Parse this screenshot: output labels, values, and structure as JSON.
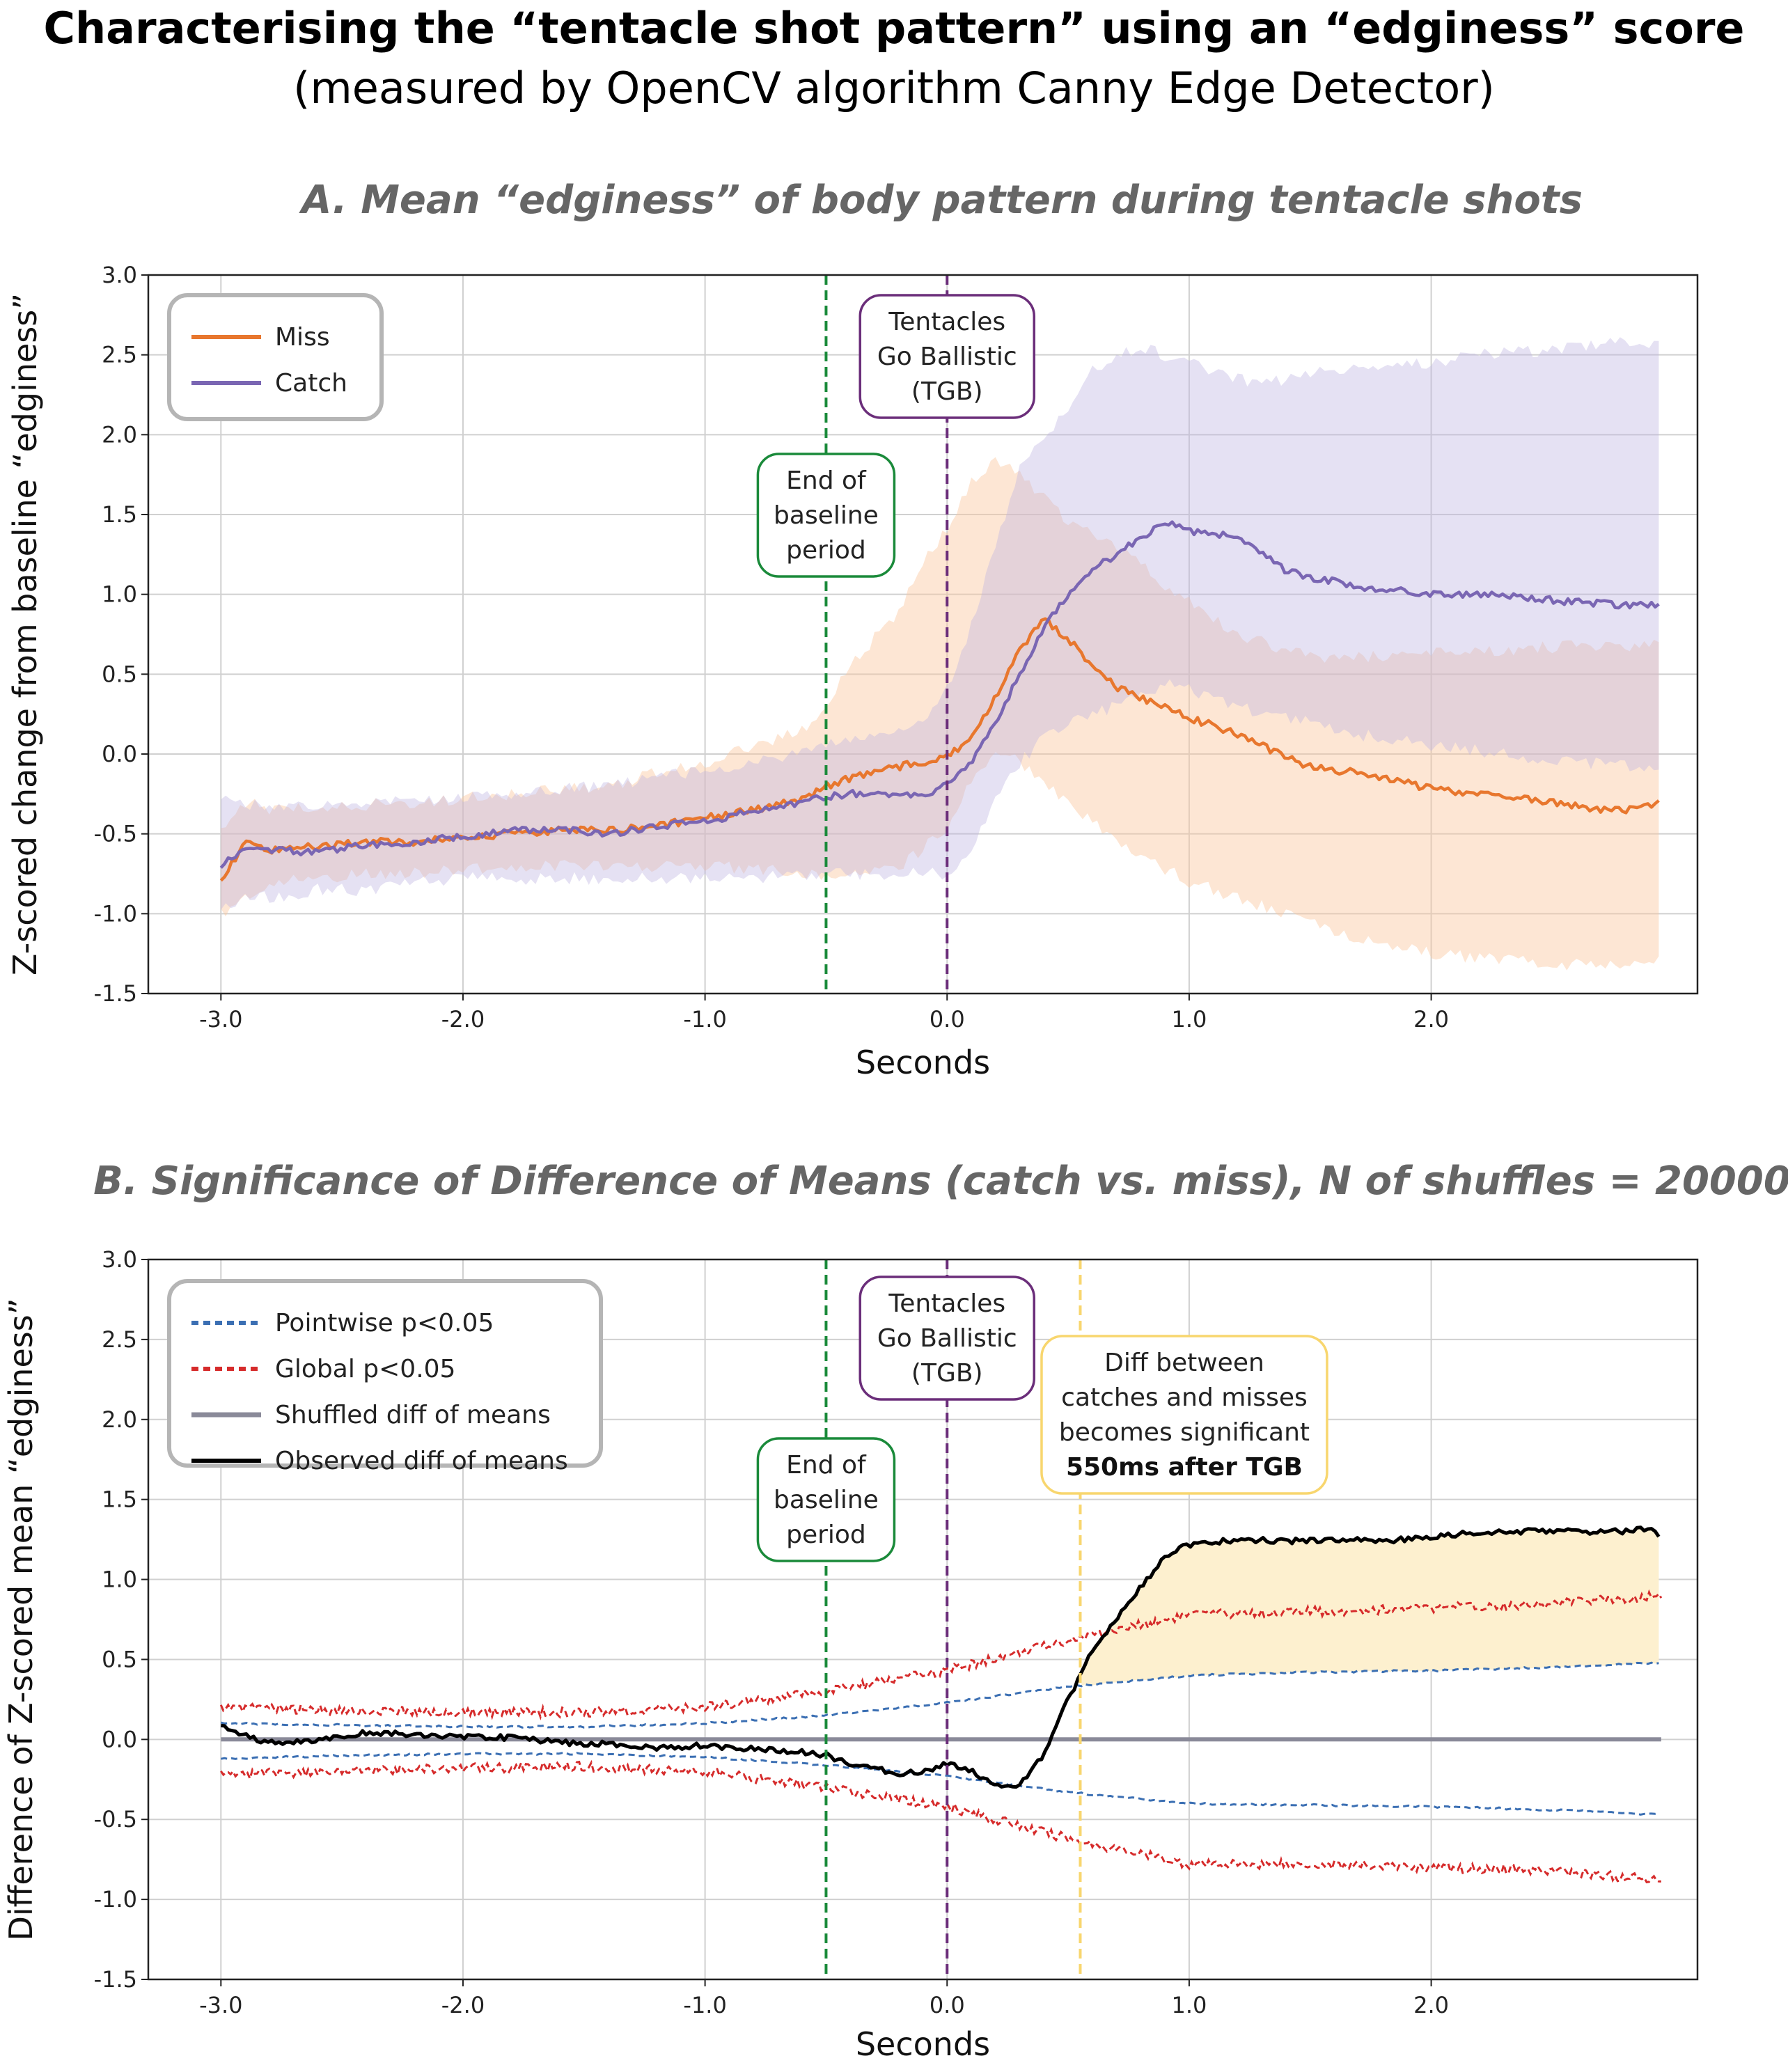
{
  "title": {
    "main": "Characterising the “tentacle shot pattern” using an “edginess” score",
    "sub": "(measured by OpenCV algorithm Canny Edge Detector)"
  },
  "colors": {
    "miss": "#e8772e",
    "catch": "#7a66b3",
    "baseline_line": "#1a8a3a",
    "tgb_line": "#6b2e7a",
    "sig_line": "#f8d66e",
    "pointwise": "#3b6fb3",
    "global": "#d62b2b",
    "shuffled": "#8a8a99",
    "observed": "#000000",
    "sig_fill": "#fdf0cf"
  },
  "chart_data": [
    {
      "type": "line",
      "title": "A. Mean “edginess” of body pattern during tentacle shots",
      "xlabel": "Seconds",
      "ylabel": "Z-scored change from baseline “edginess”",
      "xlim": [
        -3.3,
        3.1
      ],
      "ylim": [
        -1.5,
        3.0
      ],
      "xticks": [
        -3.0,
        -2.0,
        -1.0,
        0.0,
        1.0,
        2.0
      ],
      "xtick_labels": [
        "-3.0",
        "-2.0",
        "-1.0",
        "0.0",
        "1.0",
        "2.0"
      ],
      "yticks": [
        -1.5,
        -1.0,
        -0.5,
        0.0,
        0.5,
        1.0,
        1.5,
        2.0,
        2.5,
        3.0
      ],
      "ytick_labels": [
        "-1.5",
        "-1.0",
        "-0.5",
        "0.0",
        "0.5",
        "1.0",
        "1.5",
        "2.0",
        "2.5",
        "3.0"
      ],
      "grid": true,
      "legend": "top-left",
      "vlines": [
        {
          "x": -0.5,
          "label": "End of baseline period"
        },
        {
          "x": 0.0,
          "label": "Tentacles Go Ballistic (TGB)"
        }
      ],
      "annotations": {
        "baseline": [
          "End of",
          "baseline",
          "period"
        ],
        "tgb": [
          "Tentacles",
          "Go Ballistic",
          "(TGB)"
        ]
      },
      "series": [
        {
          "name": "Miss",
          "x": [
            -3.0,
            -2.9,
            -2.8,
            -2.6,
            -2.4,
            -2.2,
            -2.0,
            -1.8,
            -1.6,
            -1.4,
            -1.2,
            -1.0,
            -0.8,
            -0.6,
            -0.5,
            -0.4,
            -0.2,
            -0.1,
            0.0,
            0.1,
            0.2,
            0.3,
            0.4,
            0.5,
            0.6,
            0.7,
            0.8,
            0.9,
            1.0,
            1.1,
            1.2,
            1.3,
            1.4,
            1.5,
            1.6,
            1.7,
            1.8,
            1.9,
            2.0,
            2.2,
            2.4,
            2.6,
            2.8,
            2.95
          ],
          "values": [
            -0.8,
            -0.55,
            -0.6,
            -0.58,
            -0.55,
            -0.55,
            -0.52,
            -0.5,
            -0.48,
            -0.48,
            -0.45,
            -0.4,
            -0.35,
            -0.28,
            -0.2,
            -0.15,
            -0.08,
            -0.05,
            -0.02,
            0.1,
            0.35,
            0.65,
            0.85,
            0.72,
            0.55,
            0.42,
            0.35,
            0.3,
            0.22,
            0.18,
            0.12,
            0.05,
            -0.02,
            -0.08,
            -0.1,
            -0.12,
            -0.15,
            -0.18,
            -0.22,
            -0.25,
            -0.28,
            -0.33,
            -0.36,
            -0.3
          ],
          "lower": [
            -1.0,
            -0.9,
            -0.8,
            -0.78,
            -0.75,
            -0.75,
            -0.72,
            -0.72,
            -0.7,
            -0.7,
            -0.7,
            -0.7,
            -0.72,
            -0.75,
            -0.75,
            -0.75,
            -0.7,
            -0.6,
            -0.45,
            -0.15,
            0.0,
            -0.05,
            -0.2,
            -0.3,
            -0.42,
            -0.55,
            -0.65,
            -0.72,
            -0.8,
            -0.85,
            -0.9,
            -0.95,
            -1.0,
            -1.05,
            -1.1,
            -1.15,
            -1.2,
            -1.22,
            -1.25,
            -1.28,
            -1.3,
            -1.32,
            -1.32,
            -1.3
          ],
          "upper": [
            -0.5,
            -0.3,
            -0.35,
            -0.33,
            -0.32,
            -0.3,
            -0.28,
            -0.25,
            -0.22,
            -0.2,
            -0.12,
            -0.05,
            0.05,
            0.15,
            0.3,
            0.55,
            0.9,
            1.2,
            1.4,
            1.7,
            1.85,
            1.75,
            1.6,
            1.45,
            1.38,
            1.3,
            1.2,
            1.05,
            0.95,
            0.85,
            0.75,
            0.7,
            0.65,
            0.62,
            0.6,
            0.6,
            0.62,
            0.63,
            0.65,
            0.65,
            0.66,
            0.68,
            0.68,
            0.68
          ]
        },
        {
          "name": "Catch",
          "x": [
            -3.0,
            -2.9,
            -2.8,
            -2.6,
            -2.4,
            -2.2,
            -2.0,
            -1.8,
            -1.6,
            -1.4,
            -1.2,
            -1.0,
            -0.8,
            -0.6,
            -0.5,
            -0.4,
            -0.2,
            -0.1,
            0.0,
            0.1,
            0.2,
            0.3,
            0.4,
            0.5,
            0.6,
            0.7,
            0.8,
            0.9,
            1.0,
            1.1,
            1.2,
            1.3,
            1.4,
            1.5,
            1.6,
            1.7,
            1.8,
            1.9,
            2.0,
            2.2,
            2.4,
            2.6,
            2.8,
            2.95
          ],
          "values": [
            -0.7,
            -0.58,
            -0.6,
            -0.62,
            -0.57,
            -0.55,
            -0.52,
            -0.48,
            -0.47,
            -0.5,
            -0.45,
            -0.43,
            -0.35,
            -0.3,
            -0.27,
            -0.25,
            -0.25,
            -0.25,
            -0.2,
            -0.05,
            0.2,
            0.5,
            0.8,
            1.0,
            1.15,
            1.25,
            1.35,
            1.45,
            1.4,
            1.38,
            1.35,
            1.25,
            1.15,
            1.1,
            1.08,
            1.05,
            1.02,
            1.02,
            1.0,
            1.0,
            0.98,
            0.95,
            0.93,
            0.93
          ],
          "lower": [
            -0.95,
            -0.9,
            -0.9,
            -0.85,
            -0.85,
            -0.8,
            -0.78,
            -0.78,
            -0.78,
            -0.78,
            -0.78,
            -0.78,
            -0.78,
            -0.75,
            -0.75,
            -0.75,
            -0.75,
            -0.75,
            -0.75,
            -0.6,
            -0.3,
            -0.05,
            0.1,
            0.2,
            0.25,
            0.3,
            0.35,
            0.45,
            0.4,
            0.35,
            0.3,
            0.25,
            0.22,
            0.2,
            0.15,
            0.12,
            0.1,
            0.08,
            0.05,
            0.02,
            -0.02,
            -0.05,
            -0.08,
            -0.1
          ],
          "upper": [
            -0.3,
            -0.3,
            -0.35,
            -0.32,
            -0.3,
            -0.3,
            -0.28,
            -0.25,
            -0.22,
            -0.2,
            -0.15,
            -0.1,
            -0.05,
            0.0,
            0.05,
            0.1,
            0.15,
            0.2,
            0.4,
            0.8,
            1.3,
            1.8,
            2.0,
            2.15,
            2.4,
            2.5,
            2.55,
            2.5,
            2.45,
            2.4,
            2.35,
            2.32,
            2.35,
            2.38,
            2.4,
            2.42,
            2.45,
            2.45,
            2.45,
            2.5,
            2.52,
            2.55,
            2.58,
            2.58
          ]
        }
      ]
    },
    {
      "type": "line",
      "title": "B. Significance of Difference of Means (catch vs. miss), N of shuffles = 20000",
      "xlabel": "Seconds",
      "ylabel": "Difference of Z-scored mean “edginess”",
      "xlim": [
        -3.3,
        3.1
      ],
      "ylim": [
        -1.5,
        3.0
      ],
      "xticks": [
        -3.0,
        -2.0,
        -1.0,
        0.0,
        1.0,
        2.0
      ],
      "xtick_labels": [
        "-3.0",
        "-2.0",
        "-1.0",
        "0.0",
        "1.0",
        "2.0"
      ],
      "yticks": [
        -1.5,
        -1.0,
        -0.5,
        0.0,
        0.5,
        1.0,
        1.5,
        2.0,
        2.5,
        3.0
      ],
      "ytick_labels": [
        "-1.5",
        "-1.0",
        "-0.5",
        "0.0",
        "0.5",
        "1.0",
        "1.5",
        "2.0",
        "2.5",
        "3.0"
      ],
      "grid": true,
      "legend": "top-left",
      "vlines": [
        {
          "x": -0.5,
          "label": "End of baseline period"
        },
        {
          "x": 0.0,
          "label": "Tentacles Go Ballistic (TGB)"
        },
        {
          "x": 0.55,
          "label": "Diff between catches and misses becomes significant 550ms after TGB"
        }
      ],
      "annotations": {
        "baseline": [
          "End of",
          "baseline",
          "period"
        ],
        "tgb": [
          "Tentacles",
          "Go Ballistic",
          "(TGB)"
        ],
        "significant": [
          "Diff between",
          "catches and misses",
          "becomes significant"
        ],
        "significant_bold": "550ms after TGB"
      },
      "series": [
        {
          "name": "Pointwise p<0.05",
          "style": "dashed",
          "x": [
            -3.0,
            -2.5,
            -2.0,
            -1.5,
            -1.0,
            -0.5,
            0.0,
            0.5,
            1.0,
            1.5,
            2.0,
            2.5,
            2.95
          ],
          "upper": [
            0.1,
            0.09,
            0.08,
            0.08,
            0.1,
            0.15,
            0.23,
            0.33,
            0.4,
            0.42,
            0.43,
            0.45,
            0.48
          ],
          "lower": [
            -0.12,
            -0.1,
            -0.09,
            -0.09,
            -0.11,
            -0.16,
            -0.23,
            -0.33,
            -0.4,
            -0.41,
            -0.42,
            -0.44,
            -0.47
          ]
        },
        {
          "name": "Global p<0.05",
          "style": "dashed",
          "x": [
            -3.0,
            -2.5,
            -2.0,
            -1.5,
            -1.0,
            -0.5,
            0.0,
            0.5,
            1.0,
            1.5,
            2.0,
            2.5,
            2.95
          ],
          "upper": [
            0.2,
            0.18,
            0.17,
            0.17,
            0.2,
            0.3,
            0.43,
            0.62,
            0.78,
            0.8,
            0.82,
            0.85,
            0.9
          ],
          "lower": [
            -0.22,
            -0.2,
            -0.18,
            -0.17,
            -0.2,
            -0.3,
            -0.42,
            -0.62,
            -0.78,
            -0.78,
            -0.8,
            -0.82,
            -0.88
          ]
        },
        {
          "name": "Shuffled diff of means",
          "x": [
            -3.0,
            2.95
          ],
          "values": [
            0.0,
            0.0
          ]
        },
        {
          "name": "Observed diff of means",
          "x": [
            -3.0,
            -2.9,
            -2.8,
            -2.6,
            -2.4,
            -2.2,
            -2.0,
            -1.8,
            -1.6,
            -1.4,
            -1.2,
            -1.0,
            -0.8,
            -0.6,
            -0.5,
            -0.4,
            -0.3,
            -0.2,
            -0.1,
            0.0,
            0.1,
            0.2,
            0.3,
            0.4,
            0.5,
            0.55,
            0.6,
            0.7,
            0.8,
            0.9,
            1.0,
            1.2,
            1.4,
            1.6,
            1.8,
            2.0,
            2.2,
            2.4,
            2.6,
            2.8,
            2.9,
            2.95
          ],
          "values": [
            0.1,
            0.02,
            -0.02,
            0.0,
            0.04,
            0.03,
            0.02,
            0.01,
            -0.02,
            -0.03,
            -0.05,
            -0.04,
            -0.06,
            -0.08,
            -0.1,
            -0.15,
            -0.18,
            -0.22,
            -0.2,
            -0.15,
            -0.2,
            -0.28,
            -0.28,
            -0.1,
            0.25,
            0.4,
            0.55,
            0.75,
            0.95,
            1.15,
            1.22,
            1.25,
            1.24,
            1.25,
            1.24,
            1.26,
            1.3,
            1.3,
            1.3,
            1.3,
            1.32,
            1.25
          ]
        }
      ]
    }
  ],
  "legendA": {
    "miss": "Miss",
    "catch": "Catch"
  },
  "legendB": {
    "pointwise": "Pointwise p<0.05",
    "global": "Global p<0.05",
    "shuffled": "Shuffled diff of means",
    "observed": "Observed diff of means"
  }
}
